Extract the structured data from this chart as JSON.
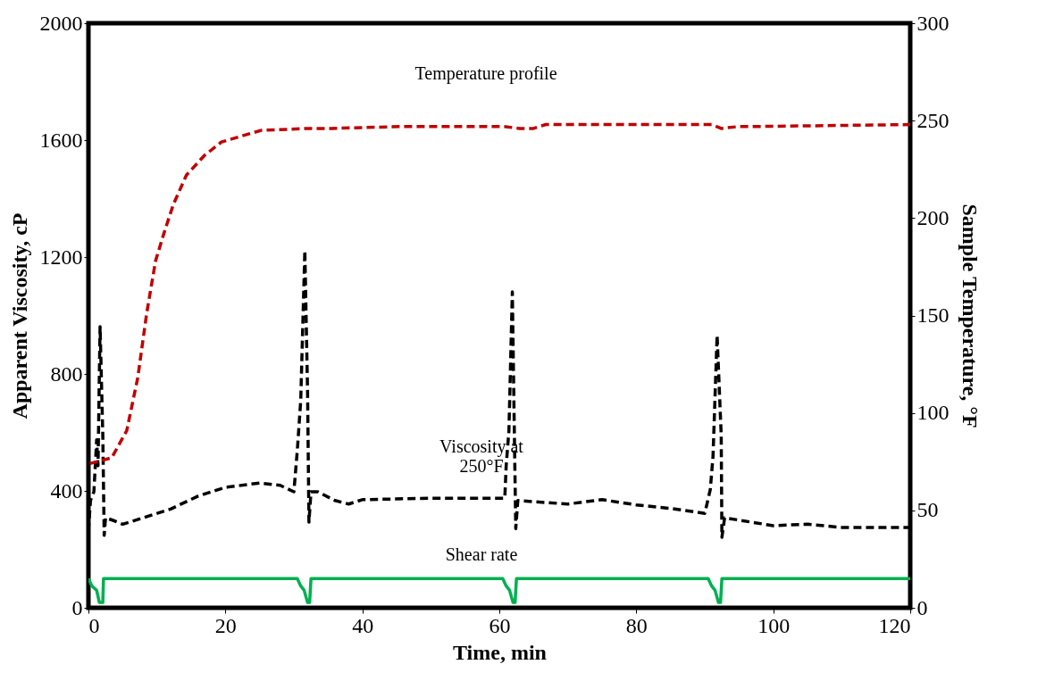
{
  "chart_data": {
    "type": "line",
    "xlabel": "Time, min",
    "ylabel": "Apparent Viscosity, cP",
    "y2label": "Sample Temperature, °F",
    "xlim": [
      0,
      120
    ],
    "xticks": [
      0,
      20,
      40,
      60,
      80,
      100,
      120
    ],
    "ylim": [
      0,
      2000
    ],
    "yticks": [
      0,
      400,
      800,
      1200,
      1600,
      2000
    ],
    "y2lim": [
      0,
      300
    ],
    "y2ticks": [
      0,
      50,
      100,
      150,
      200,
      250,
      300
    ],
    "series": [
      {
        "color": "#c00000",
        "line_style": "dashed",
        "axis": "y2",
        "x": [
          0.2,
          3.4,
          5.6,
          7.2,
          8.5,
          9.8,
          11.1,
          12.4,
          14.3,
          16.9,
          19.4,
          21.3,
          25.2,
          32.2,
          35.4,
          45.7,
          60.6,
          63,
          65,
          66.8,
          67.5,
          80,
          91,
          92.4,
          95,
          97.5,
          120
        ],
        "values": [
          74,
          77,
          91,
          118,
          151,
          178,
          193,
          207,
          222,
          232,
          239,
          241,
          245,
          246,
          246,
          247,
          247,
          246,
          246,
          248,
          248,
          248,
          248,
          246,
          247,
          247,
          248
        ]
      },
      {
        "color": "#000000",
        "line_style": "dashed",
        "x": [
          0,
          0.3,
          0.8,
          1.2,
          1.4,
          1.7,
          2.1,
          2.3,
          2.5,
          3.5,
          5,
          8,
          12,
          16,
          20,
          25,
          28,
          30,
          30.5,
          31,
          31.6,
          32,
          32.2,
          32.5,
          33.5,
          36,
          38,
          40,
          50,
          60.8,
          61,
          61.4,
          61.9,
          62.2,
          62.4,
          62.7,
          70,
          75,
          80,
          85,
          90,
          90.8,
          91.2,
          91.8,
          92.4,
          92.5,
          92.9,
          95,
          100,
          105,
          110,
          120
        ],
        "values": [
          263,
          367,
          397,
          575,
          486,
          962,
          590,
          248,
          308,
          300,
          286,
          308,
          338,
          382,
          412,
          427,
          419,
          397,
          538,
          709,
          1222,
          739,
          293,
          397,
          397,
          367,
          355,
          370,
          375,
          375,
          486,
          605,
          1081,
          590,
          271,
          367,
          355,
          370,
          352,
          340,
          323,
          404,
          516,
          932,
          590,
          241,
          308,
          300,
          281,
          286,
          275,
          275
        ]
      },
      {
        "color": "#00b050",
        "line_style": "solid",
        "x": [
          0,
          0.5,
          1.2,
          1.6,
          2.1,
          2.2,
          30.5,
          31,
          31.5,
          32,
          32.3,
          32.5,
          60.5,
          61,
          61.5,
          62,
          62.3,
          62.5,
          90.5,
          91,
          91.5,
          92,
          92.3,
          92.5,
          120
        ],
        "values": [
          100,
          75,
          60,
          18,
          18,
          100,
          100,
          75,
          60,
          18,
          18,
          100,
          100,
          75,
          60,
          18,
          18,
          100,
          100,
          75,
          60,
          18,
          18,
          100,
          100
        ]
      }
    ],
    "annotations": [
      "Temperature profile",
      "Viscosity at\n250°F",
      "Shear rate"
    ]
  }
}
